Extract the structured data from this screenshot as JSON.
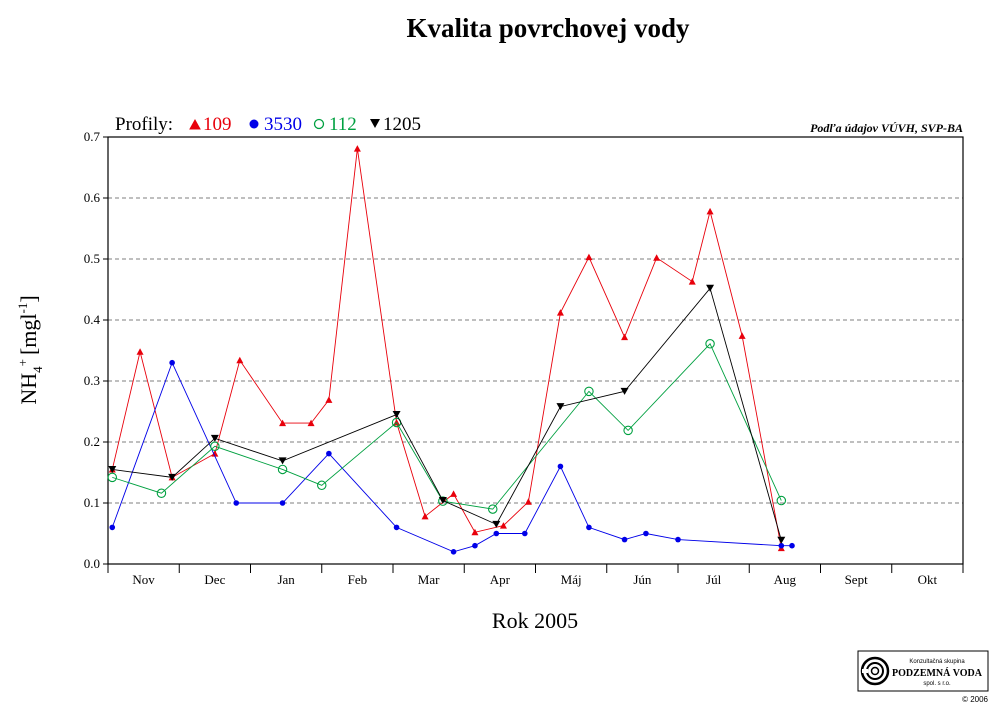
{
  "chart_data": {
    "type": "line",
    "title": "Kvalita povrchovej vody",
    "xlabel": "Rok 2005",
    "ylabel_main": "NH",
    "ylabel_sub": "4",
    "ylabel_sup": "+",
    "ylabel_unit": "[mgl",
    "ylabel_unit_sup": "-1",
    "ylabel_unit_end": "]",
    "ylim": [
      0,
      0.7
    ],
    "yticks": [
      "0.0",
      "0.1",
      "0.2",
      "0.3",
      "0.4",
      "0.5",
      "0.6",
      "0.7"
    ],
    "xlim": [
      0,
      12
    ],
    "months": [
      "Nov",
      "Dec",
      "Jan",
      "Feb",
      "Mar",
      "Apr",
      "Máj",
      "Jún",
      "Júl",
      "Aug",
      "Sept",
      "Okt"
    ],
    "grid": "horizontal dashed",
    "legend_prefix": "Profily:",
    "source_note": "Podľa údajov VÚVH, SVP-BA",
    "series": [
      {
        "name": "109",
        "color": "#e8000b",
        "marker": "triangle-up",
        "points": [
          [
            0.06,
            0.155
          ],
          [
            0.45,
            0.348
          ],
          [
            0.9,
            0.142
          ],
          [
            1.5,
            0.181
          ],
          [
            1.85,
            0.334
          ],
          [
            2.45,
            0.231
          ],
          [
            2.85,
            0.231
          ],
          [
            3.1,
            0.269
          ],
          [
            3.5,
            0.681
          ],
          [
            4.05,
            0.232
          ],
          [
            4.45,
            0.078
          ],
          [
            4.85,
            0.115
          ],
          [
            5.15,
            0.052
          ],
          [
            5.55,
            0.063
          ],
          [
            5.9,
            0.102
          ],
          [
            6.35,
            0.412
          ],
          [
            6.75,
            0.503
          ],
          [
            7.25,
            0.372
          ],
          [
            7.7,
            0.502
          ],
          [
            8.2,
            0.463
          ],
          [
            8.45,
            0.578
          ],
          [
            8.9,
            0.374
          ],
          [
            9.45,
            0.026
          ]
        ]
      },
      {
        "name": "3530",
        "color": "#0000e8",
        "marker": "circle-filled",
        "points": [
          [
            0.06,
            0.06
          ],
          [
            0.9,
            0.33
          ],
          [
            1.8,
            0.1
          ],
          [
            2.45,
            0.1
          ],
          [
            3.1,
            0.181
          ],
          [
            4.05,
            0.06
          ],
          [
            4.85,
            0.02
          ],
          [
            5.15,
            0.03
          ],
          [
            5.45,
            0.05
          ],
          [
            5.85,
            0.05
          ],
          [
            6.35,
            0.16
          ],
          [
            6.75,
            0.06
          ],
          [
            7.25,
            0.04
          ],
          [
            7.55,
            0.05
          ],
          [
            8.0,
            0.04
          ],
          [
            9.45,
            0.03
          ],
          [
            9.6,
            0.03
          ]
        ]
      },
      {
        "name": "112",
        "color": "#00a040",
        "marker": "circle-open",
        "points": [
          [
            0.06,
            0.142
          ],
          [
            0.75,
            0.116
          ],
          [
            1.5,
            0.193
          ],
          [
            2.45,
            0.155
          ],
          [
            3.0,
            0.129
          ],
          [
            4.05,
            0.232
          ],
          [
            4.7,
            0.103
          ],
          [
            5.4,
            0.09
          ],
          [
            6.75,
            0.283
          ],
          [
            7.3,
            0.219
          ],
          [
            8.45,
            0.361
          ],
          [
            9.45,
            0.104
          ]
        ]
      },
      {
        "name": "1205",
        "color": "#000000",
        "marker": "triangle-down",
        "points": [
          [
            0.06,
            0.155
          ],
          [
            0.9,
            0.142
          ],
          [
            1.5,
            0.206
          ],
          [
            2.45,
            0.169
          ],
          [
            4.05,
            0.245
          ],
          [
            4.7,
            0.104
          ],
          [
            5.45,
            0.065
          ],
          [
            6.35,
            0.258
          ],
          [
            7.25,
            0.283
          ],
          [
            8.45,
            0.452
          ],
          [
            9.45,
            0.039
          ]
        ]
      }
    ]
  },
  "logo": {
    "line1": "Konzultačná skupina",
    "line2": "PODZEMNÁ VODA",
    "line3": "spol. s r.o.",
    "copyright": "© 2006"
  }
}
